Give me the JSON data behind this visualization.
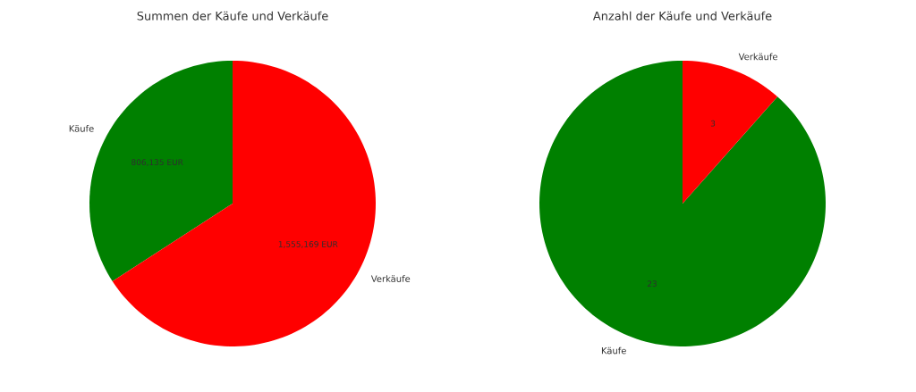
{
  "chart_data": [
    {
      "type": "pie",
      "title": "Summen der Käufe und Verkäufe",
      "categories": [
        "Käufe",
        "Verkäufe"
      ],
      "values": [
        806135,
        1555169
      ],
      "colors": [
        "#008000",
        "#ff0000"
      ],
      "value_labels": [
        "806,135 EUR",
        "1,555,169 EUR"
      ]
    },
    {
      "type": "pie",
      "title": "Anzahl der Käufe und Verkäufe",
      "categories": [
        "Käufe",
        "Verkäufe"
      ],
      "values": [
        23,
        3
      ],
      "colors": [
        "#008000",
        "#ff0000"
      ],
      "data_labels": true
    }
  ]
}
